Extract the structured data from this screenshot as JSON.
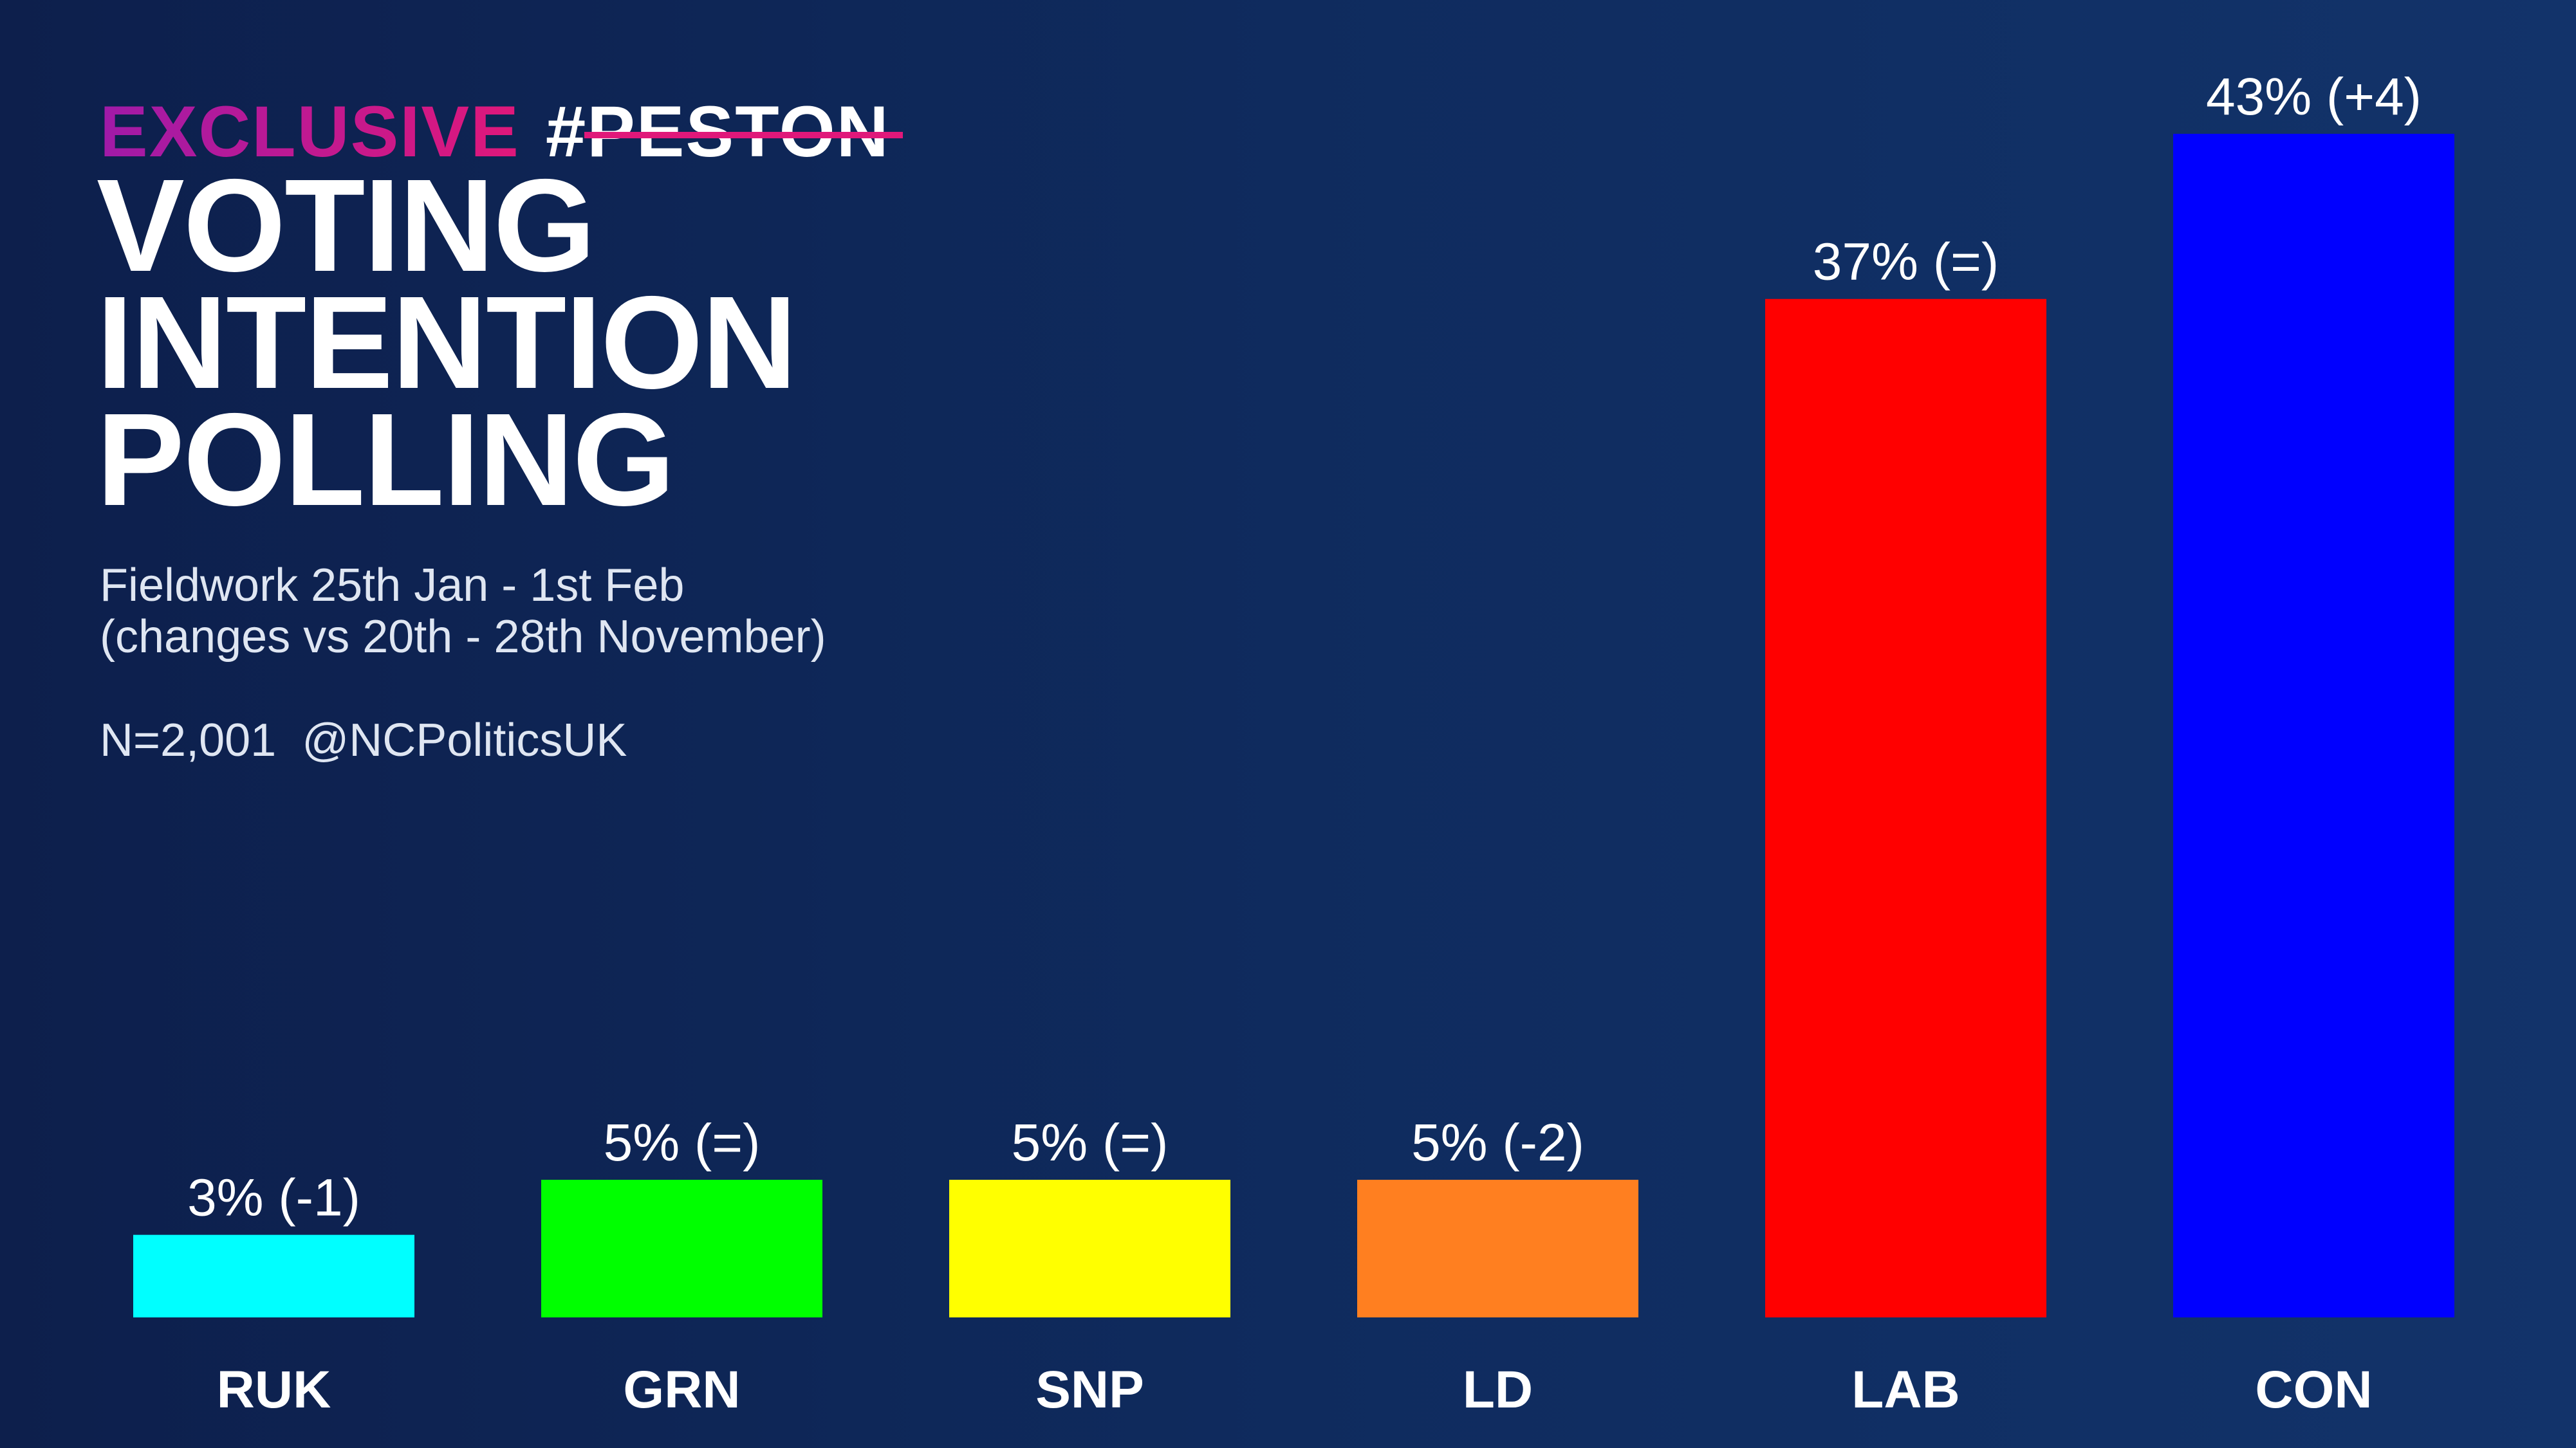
{
  "brand": {
    "exclusive": "EXCLUSIVE",
    "peston": "#PESTON"
  },
  "title_lines": [
    "VOTING",
    "INTENTION",
    "POLLING"
  ],
  "subtitle_lines": [
    "Fieldwork 25th Jan - 1st Feb",
    "(changes vs 20th - 28th November)"
  ],
  "meta": {
    "sample": "N=2,001",
    "handle": "@NCPoliticsUK"
  },
  "colors": {
    "accent_pink": "#e0187a",
    "accent_purple": "#a01aa8"
  },
  "chart_data": {
    "type": "bar",
    "title": "VOTING INTENTION POLLING",
    "categories": [
      "RUK",
      "GRN",
      "SNP",
      "LD",
      "LAB",
      "CON"
    ],
    "values": [
      3,
      5,
      5,
      5,
      37,
      43
    ],
    "labels": [
      "3% (-1)",
      "5% (=)",
      "5% (=)",
      "5% (-2)",
      "37% (=)",
      "43% (+4)"
    ],
    "colors": [
      "#00ffff",
      "#00ff00",
      "#ffff00",
      "#ff7f20",
      "#ff0000",
      "#0000ff"
    ],
    "ylim": [
      0,
      43
    ],
    "unit": "%"
  }
}
